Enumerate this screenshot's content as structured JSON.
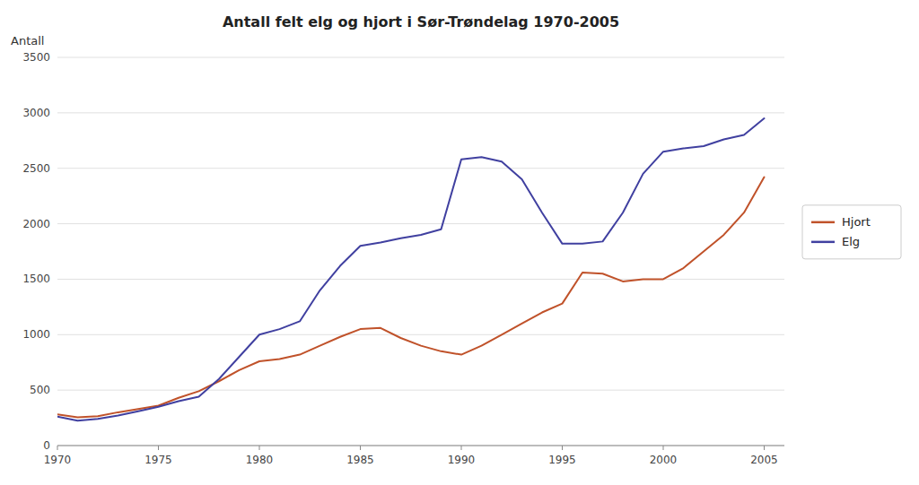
{
  "chart_data": {
    "type": "line",
    "title": "Antall felt elg og hjort i Sør-Trøndelag 1970-2005",
    "y_label": "Antall",
    "x": [
      1970,
      1971,
      1972,
      1973,
      1974,
      1975,
      1976,
      1977,
      1978,
      1979,
      1980,
      1981,
      1982,
      1983,
      1984,
      1985,
      1986,
      1987,
      1988,
      1989,
      1990,
      1991,
      1992,
      1993,
      1994,
      1995,
      1996,
      1997,
      1998,
      1999,
      2000,
      2001,
      2002,
      2003,
      2004,
      2005
    ],
    "series": [
      {
        "name": "Hjort",
        "color": "#c0522a",
        "values": [
          280,
          255,
          265,
          300,
          330,
          360,
          430,
          490,
          580,
          680,
          760,
          780,
          820,
          900,
          980,
          1050,
          1060,
          970,
          900,
          850,
          820,
          900,
          1000,
          1100,
          1200,
          1280,
          1560,
          1550,
          1480,
          1500,
          1500,
          1600,
          1750,
          1900,
          2100,
          2420
        ]
      },
      {
        "name": "Elg",
        "color": "#4040a0",
        "values": [
          260,
          225,
          240,
          270,
          310,
          350,
          400,
          440,
          600,
          800,
          1000,
          1050,
          1120,
          1400,
          1620,
          1800,
          1830,
          1870,
          1900,
          1950,
          2580,
          2600,
          2560,
          2400,
          2100,
          1820,
          1820,
          1840,
          2100,
          2450,
          2650,
          2680,
          2700,
          2760,
          2800,
          2950
        ]
      }
    ],
    "xlim": [
      1970,
      2006
    ],
    "ylim": [
      0,
      3500
    ],
    "xticks": [
      1970,
      1975,
      1980,
      1985,
      1990,
      1995,
      2000,
      2005
    ],
    "yticks": [
      0,
      500,
      1000,
      1500,
      2000,
      2500,
      3000,
      3500
    ],
    "grid": true,
    "legend": "right"
  }
}
